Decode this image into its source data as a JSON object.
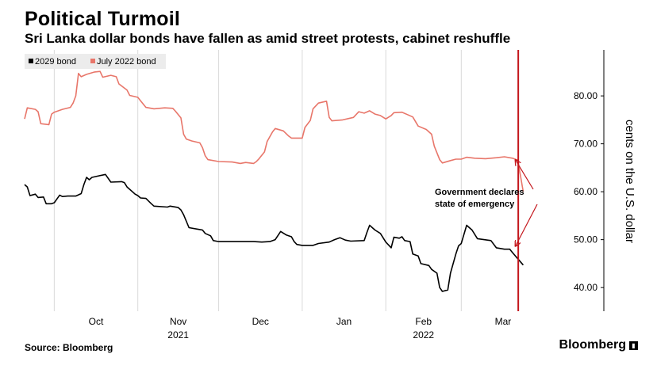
{
  "header": {
    "title": "Political Turmoil",
    "subtitle": "Sri Lanka dollar bonds have fallen as amid street protests, cabinet reshuffle"
  },
  "footer": {
    "source": "Source: Bloomberg",
    "brand": "Bloomberg"
  },
  "colors": {
    "bond_2029": "#000000",
    "bond_2022": "#e8766a",
    "event_line": "#c4161c",
    "gridline": "#d9d9d9",
    "legend_bg": "#ececec"
  },
  "chart_data": {
    "type": "line",
    "title": "Political Turmoil",
    "subtitle": "Sri Lanka dollar bonds have fallen as amid street protests, cabinet reshuffle",
    "ylabel": "cents on the U.S. dollar",
    "ylim": [
      35,
      90
    ],
    "yticks": [
      "40.00",
      "50.00",
      "60.00",
      "70.00",
      "80.00"
    ],
    "ytick_values": [
      40,
      50,
      60,
      70,
      80
    ],
    "xlim": [
      "2021-09-20",
      "2022-04-07"
    ],
    "xticks": [
      {
        "label": "Oct",
        "date": "2021-10-01"
      },
      {
        "label": "Nov",
        "date": "2021-11-01"
      },
      {
        "label": "Dec",
        "date": "2021-12-01"
      },
      {
        "label": "Jan",
        "date": "2022-01-01"
      },
      {
        "label": "Feb",
        "date": "2022-02-01"
      },
      {
        "label": "Mar",
        "date": "2022-03-01"
      }
    ],
    "year_labels": [
      {
        "label": "2021",
        "date": "2021-11-01"
      },
      {
        "label": "2022",
        "date": "2022-02-01"
      }
    ],
    "grid": true,
    "legend_position": "top-left",
    "series": [
      {
        "name": "2029 bond",
        "color": "#000000",
        "points": [
          [
            "2021-09-20",
            61.5
          ],
          [
            "2021-09-21",
            61.0
          ],
          [
            "2021-09-22",
            59.2
          ],
          [
            "2021-09-24",
            59.5
          ],
          [
            "2021-09-25",
            58.8
          ],
          [
            "2021-09-27",
            58.9
          ],
          [
            "2021-09-28",
            57.5
          ],
          [
            "2021-09-30",
            57.5
          ],
          [
            "2021-10-01",
            57.7
          ],
          [
            "2021-10-03",
            59.3
          ],
          [
            "2021-10-04",
            59.0
          ],
          [
            "2021-10-06",
            59.1
          ],
          [
            "2021-10-09",
            59.1
          ],
          [
            "2021-10-11",
            59.6
          ],
          [
            "2021-10-12",
            61.5
          ],
          [
            "2021-10-13",
            63.0
          ],
          [
            "2021-10-14",
            62.5
          ],
          [
            "2021-10-15",
            63.0
          ],
          [
            "2021-10-20",
            63.6
          ],
          [
            "2021-10-22",
            62.0
          ],
          [
            "2021-10-26",
            62.1
          ],
          [
            "2021-10-27",
            61.9
          ],
          [
            "2021-10-28",
            61.0
          ],
          [
            "2021-10-29",
            60.5
          ],
          [
            "2021-10-31",
            59.5
          ],
          [
            "2021-11-01",
            59.2
          ],
          [
            "2021-11-02",
            58.7
          ],
          [
            "2021-11-04",
            58.6
          ],
          [
            "2021-11-06",
            57.5
          ],
          [
            "2021-11-07",
            57.0
          ],
          [
            "2021-11-12",
            56.8
          ],
          [
            "2021-11-13",
            57.0
          ],
          [
            "2021-11-16",
            56.7
          ],
          [
            "2021-11-17",
            56.2
          ],
          [
            "2021-11-18",
            55.2
          ],
          [
            "2021-11-20",
            52.5
          ],
          [
            "2021-11-23",
            52.2
          ],
          [
            "2021-11-25",
            52.0
          ],
          [
            "2021-11-26",
            51.3
          ],
          [
            "2021-11-28",
            50.8
          ],
          [
            "2021-11-29",
            49.8
          ],
          [
            "2021-12-01",
            49.6
          ],
          [
            "2021-12-14",
            49.6
          ],
          [
            "2021-12-17",
            49.5
          ],
          [
            "2021-12-20",
            49.6
          ],
          [
            "2021-12-22",
            50.0
          ],
          [
            "2021-12-24",
            51.7
          ],
          [
            "2021-12-26",
            51.0
          ],
          [
            "2021-12-28",
            50.6
          ],
          [
            "2021-12-29",
            49.6
          ],
          [
            "2021-12-30",
            49.0
          ],
          [
            "2022-01-01",
            48.8
          ],
          [
            "2022-01-05",
            48.8
          ],
          [
            "2022-01-07",
            49.2
          ],
          [
            "2022-01-11",
            49.5
          ],
          [
            "2022-01-13",
            50.0
          ],
          [
            "2022-01-15",
            50.4
          ],
          [
            "2022-01-17",
            49.9
          ],
          [
            "2022-01-19",
            49.7
          ],
          [
            "2022-01-24",
            49.8
          ],
          [
            "2022-01-25",
            51.5
          ],
          [
            "2022-01-26",
            53.0
          ],
          [
            "2022-01-28",
            52.0
          ],
          [
            "2022-01-30",
            51.3
          ],
          [
            "2022-02-01",
            49.5
          ],
          [
            "2022-02-03",
            48.3
          ],
          [
            "2022-02-04",
            50.5
          ],
          [
            "2022-02-06",
            50.3
          ],
          [
            "2022-02-07",
            50.6
          ],
          [
            "2022-02-08",
            49.8
          ],
          [
            "2022-02-10",
            49.6
          ],
          [
            "2022-02-11",
            47.0
          ],
          [
            "2022-02-13",
            46.6
          ],
          [
            "2022-02-14",
            45.0
          ],
          [
            "2022-02-17",
            44.6
          ],
          [
            "2022-02-18",
            43.8
          ],
          [
            "2022-02-20",
            43.0
          ],
          [
            "2022-02-21",
            40.0
          ],
          [
            "2022-02-22",
            39.2
          ],
          [
            "2022-02-24",
            39.5
          ],
          [
            "2022-02-25",
            43.0
          ],
          [
            "2022-02-27",
            47.0
          ],
          [
            "2022-02-28",
            48.7
          ],
          [
            "2022-03-01",
            49.2
          ],
          [
            "2022-03-03",
            53.0
          ],
          [
            "2022-03-05",
            52.0
          ],
          [
            "2022-03-07",
            50.2
          ],
          [
            "2022-03-12",
            49.8
          ],
          [
            "2022-03-14",
            48.3
          ],
          [
            "2022-03-17",
            48.0
          ],
          [
            "2022-03-19",
            48.0
          ],
          [
            "2022-03-20",
            47.3
          ],
          [
            "2022-03-22",
            46.0
          ],
          [
            "2022-03-24",
            44.7
          ]
        ]
      },
      {
        "name": "July 2022 bond",
        "color": "#e8766a",
        "points": [
          [
            "2021-09-20",
            75.2
          ],
          [
            "2021-09-21",
            77.5
          ],
          [
            "2021-09-24",
            77.2
          ],
          [
            "2021-09-25",
            76.7
          ],
          [
            "2021-09-26",
            74.2
          ],
          [
            "2021-09-29",
            74.0
          ],
          [
            "2021-09-30",
            76.2
          ],
          [
            "2021-10-01",
            76.6
          ],
          [
            "2021-10-04",
            77.2
          ],
          [
            "2021-10-07",
            77.6
          ],
          [
            "2021-10-08",
            78.5
          ],
          [
            "2021-10-09",
            80.0
          ],
          [
            "2021-10-10",
            84.7
          ],
          [
            "2021-10-11",
            84.0
          ],
          [
            "2021-10-13",
            84.5
          ],
          [
            "2021-10-16",
            85.0
          ],
          [
            "2021-10-18",
            85.1
          ],
          [
            "2021-10-19",
            83.9
          ],
          [
            "2021-10-22",
            84.3
          ],
          [
            "2021-10-24",
            84.0
          ],
          [
            "2021-10-25",
            82.5
          ],
          [
            "2021-10-28",
            81.2
          ],
          [
            "2021-10-29",
            80.1
          ],
          [
            "2021-11-01",
            79.7
          ],
          [
            "2021-11-02",
            79.0
          ],
          [
            "2021-11-04",
            77.6
          ],
          [
            "2021-11-07",
            77.3
          ],
          [
            "2021-11-11",
            77.5
          ],
          [
            "2021-11-14",
            77.4
          ],
          [
            "2021-11-15",
            76.8
          ],
          [
            "2021-11-17",
            75.4
          ],
          [
            "2021-11-18",
            72.0
          ],
          [
            "2021-11-19",
            71.0
          ],
          [
            "2021-11-21",
            70.6
          ],
          [
            "2021-11-24",
            70.2
          ],
          [
            "2021-11-25",
            69.2
          ],
          [
            "2021-11-26",
            67.5
          ],
          [
            "2021-11-27",
            66.7
          ],
          [
            "2021-12-01",
            66.3
          ],
          [
            "2021-12-06",
            66.2
          ],
          [
            "2021-12-09",
            65.9
          ],
          [
            "2021-12-11",
            66.1
          ],
          [
            "2021-12-14",
            65.9
          ],
          [
            "2021-12-15",
            66.3
          ],
          [
            "2021-12-16",
            66.9
          ],
          [
            "2021-12-18",
            68.3
          ],
          [
            "2021-12-19",
            70.5
          ],
          [
            "2021-12-21",
            72.5
          ],
          [
            "2021-12-22",
            73.2
          ],
          [
            "2021-12-25",
            72.7
          ],
          [
            "2021-12-27",
            71.6
          ],
          [
            "2021-12-28",
            71.2
          ],
          [
            "2022-01-01",
            71.2
          ],
          [
            "2022-01-02",
            73.4
          ],
          [
            "2022-01-04",
            74.9
          ],
          [
            "2022-01-05",
            77.3
          ],
          [
            "2022-01-07",
            78.5
          ],
          [
            "2022-01-10",
            78.9
          ],
          [
            "2022-01-11",
            75.5
          ],
          [
            "2022-01-12",
            74.8
          ],
          [
            "2022-01-16",
            75.0
          ],
          [
            "2022-01-20",
            75.5
          ],
          [
            "2022-01-22",
            76.7
          ],
          [
            "2022-01-24",
            76.4
          ],
          [
            "2022-01-26",
            76.9
          ],
          [
            "2022-01-28",
            76.2
          ],
          [
            "2022-01-30",
            75.9
          ],
          [
            "2022-02-01",
            75.2
          ],
          [
            "2022-02-03",
            75.9
          ],
          [
            "2022-02-04",
            76.5
          ],
          [
            "2022-02-07",
            76.6
          ],
          [
            "2022-02-09",
            76.1
          ],
          [
            "2022-02-11",
            75.6
          ],
          [
            "2022-02-13",
            73.7
          ],
          [
            "2022-02-16",
            73.0
          ],
          [
            "2022-02-18",
            72.0
          ],
          [
            "2022-02-19",
            69.5
          ],
          [
            "2022-02-21",
            66.7
          ],
          [
            "2022-02-22",
            66.0
          ],
          [
            "2022-02-25",
            66.5
          ],
          [
            "2022-02-27",
            66.8
          ],
          [
            "2022-03-01",
            66.8
          ],
          [
            "2022-03-03",
            67.2
          ],
          [
            "2022-03-06",
            67.0
          ],
          [
            "2022-03-10",
            66.9
          ],
          [
            "2022-03-14",
            67.1
          ],
          [
            "2022-03-17",
            67.3
          ],
          [
            "2022-03-20",
            67.0
          ],
          [
            "2022-03-22",
            66.6
          ],
          [
            "2022-03-24",
            60.0
          ]
        ]
      }
    ],
    "annotations": [
      {
        "text_lines": [
          "Government declares",
          "state of emergency"
        ],
        "event_date": "2022-03-22",
        "arrow_targets": [
          [
            "2022-03-22",
            67.3
          ],
          [
            "2022-03-22",
            48.0
          ]
        ]
      }
    ]
  }
}
